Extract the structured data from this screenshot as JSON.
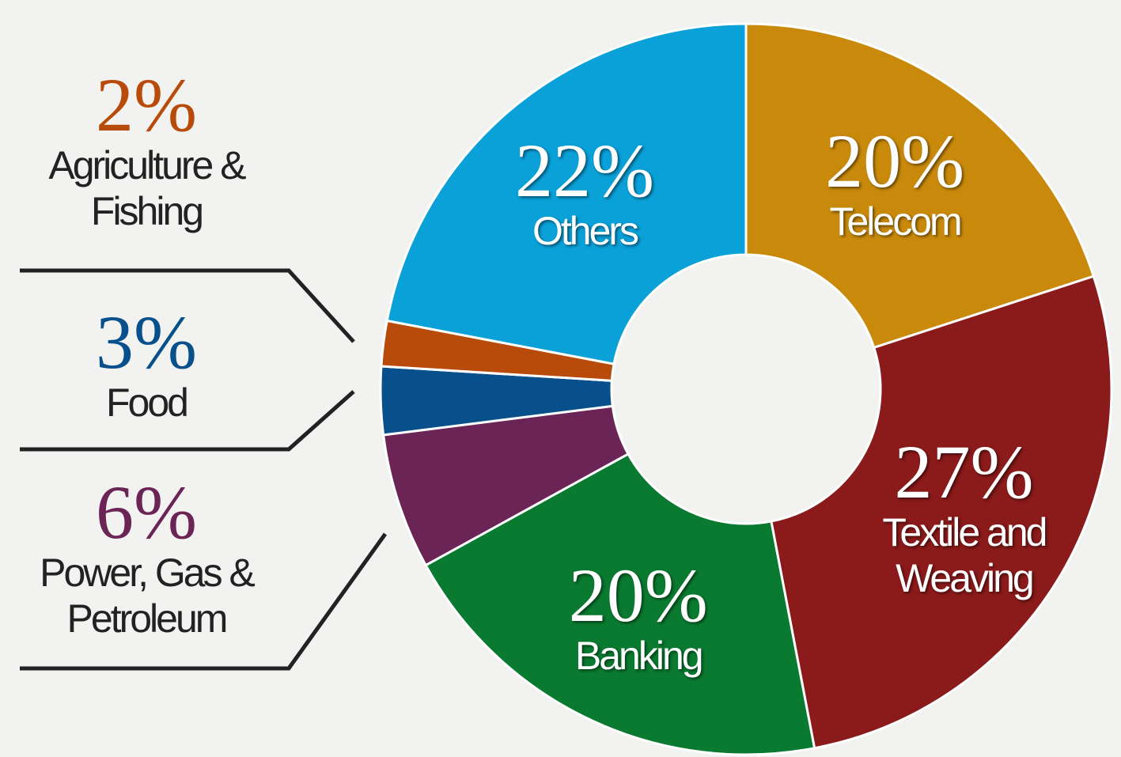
{
  "chart_data": {
    "type": "donut",
    "categories": [
      "Telecom",
      "Textile and Weaving",
      "Banking",
      "Power, Gas & Petroleum",
      "Food",
      "Agriculture & Fishing",
      "Others"
    ],
    "values": [
      20,
      27,
      20,
      6,
      3,
      2,
      22
    ],
    "value_labels": [
      "20%",
      "27%",
      "20%",
      "6%",
      "3%",
      "2%",
      "22%"
    ],
    "colors": [
      "#c98a0c",
      "#8b1a1a",
      "#0a7a30",
      "#6b2456",
      "#08508c",
      "#b84a0a",
      "#0aa0d8"
    ]
  }
}
